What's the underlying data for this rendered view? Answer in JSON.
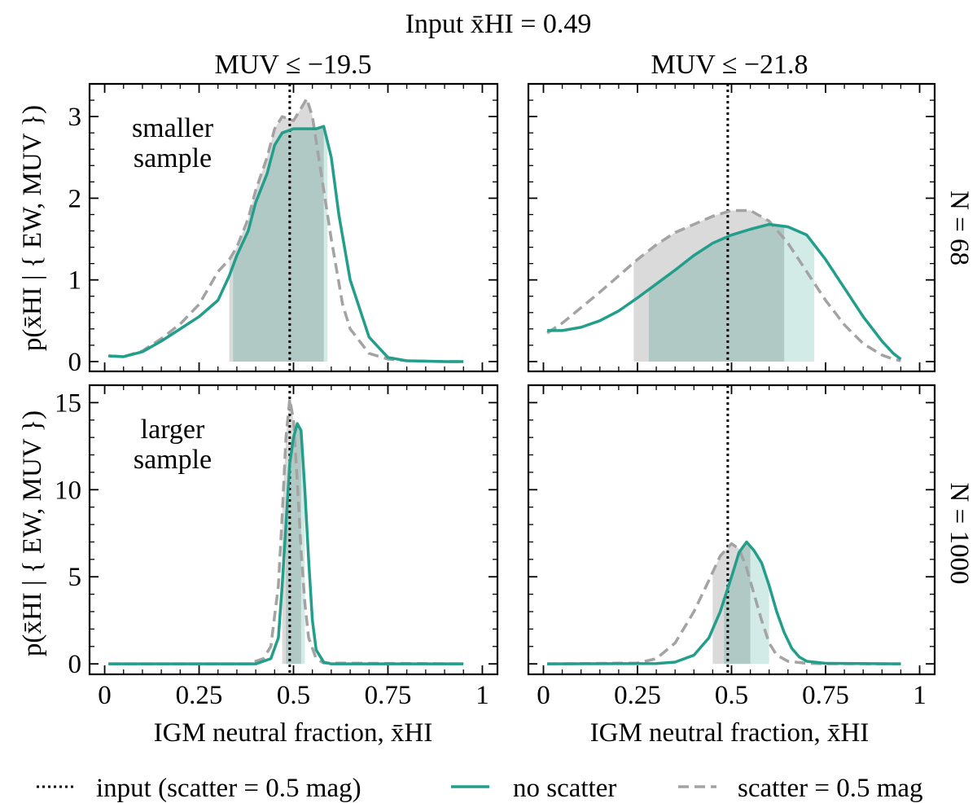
{
  "figure": {
    "suptitle": "Input x̄HI = 0.49",
    "colors": {
      "no_scatter": "#229e8b",
      "no_scatter_fill": "#d2ebe6",
      "scatter": "#a3a3a3",
      "scatter_fill": "#dadada",
      "overlap_fill": "#b1c9c4",
      "input_line": "#000000"
    }
  },
  "legend": {
    "entries": [
      {
        "label": "input (scatter = 0.5 mag)",
        "style": "dotted"
      },
      {
        "label": "no scatter",
        "style": "solid"
      },
      {
        "label": "scatter = 0.5 mag",
        "style": "dashed"
      }
    ]
  },
  "chart_data": [
    {
      "type": "line",
      "panel": "top-left",
      "title": "MUV ≤ −19.5",
      "ylabel": "p(x̄HI | { EW, MUV })",
      "xlabel": "",
      "annotation": [
        "smaller",
        "sample"
      ],
      "xlim": [
        -0.04,
        1.04
      ],
      "ylim": [
        -0.12,
        3.4
      ],
      "xticks": [
        0,
        0.25,
        0.5,
        0.75,
        1
      ],
      "xtick_labels": [
        "0",
        "0.25",
        "0.5",
        "0.75",
        "1"
      ],
      "yticks": [
        0,
        1,
        2,
        3
      ],
      "ytick_labels": [
        "0",
        "1",
        "2",
        "3"
      ],
      "input_x": 0.49,
      "series": [
        {
          "name": "no scatter",
          "x": [
            0.01,
            0.05,
            0.1,
            0.15,
            0.2,
            0.25,
            0.3,
            0.33,
            0.35,
            0.38,
            0.4,
            0.43,
            0.45,
            0.47,
            0.5,
            0.53,
            0.56,
            0.58,
            0.6,
            0.62,
            0.65,
            0.7,
            0.75,
            0.8,
            0.9,
            0.95
          ],
          "y": [
            0.07,
            0.06,
            0.12,
            0.25,
            0.4,
            0.55,
            0.75,
            1.05,
            1.3,
            1.6,
            1.95,
            2.3,
            2.65,
            2.8,
            2.85,
            2.85,
            2.85,
            2.88,
            2.5,
            1.8,
            1.0,
            0.3,
            0.05,
            0.01,
            0.0,
            0.0
          ],
          "band": [
            0.34,
            0.59
          ]
        },
        {
          "name": "scatter = 0.5 mag",
          "x": [
            0.01,
            0.05,
            0.1,
            0.15,
            0.2,
            0.25,
            0.3,
            0.33,
            0.35,
            0.38,
            0.4,
            0.43,
            0.45,
            0.47,
            0.5,
            0.52,
            0.535,
            0.55,
            0.57,
            0.6,
            0.63,
            0.65,
            0.7,
            0.75,
            0.8,
            0.9,
            0.95
          ],
          "y": [
            0.07,
            0.06,
            0.13,
            0.28,
            0.46,
            0.7,
            1.1,
            1.25,
            1.4,
            1.75,
            2.1,
            2.5,
            2.85,
            3.0,
            2.95,
            3.1,
            3.22,
            3.0,
            2.4,
            1.5,
            0.7,
            0.4,
            0.1,
            0.03,
            0.01,
            0.0,
            0.0
          ],
          "band": [
            0.33,
            0.58
          ]
        }
      ]
    },
    {
      "type": "line",
      "panel": "top-right",
      "title": "MUV ≤ −21.8",
      "ylabel": "",
      "xlabel": "",
      "row_label": "N = 68",
      "xlim": [
        -0.04,
        1.04
      ],
      "ylim": [
        -0.12,
        3.4
      ],
      "xticks": [
        0,
        0.25,
        0.5,
        0.75,
        1
      ],
      "xtick_labels": [
        "0",
        "0.25",
        "0.5",
        "0.75",
        "1"
      ],
      "yticks": [
        0,
        1,
        2,
        3
      ],
      "ytick_labels": [
        "",
        "",
        "",
        ""
      ],
      "input_x": 0.49,
      "series": [
        {
          "name": "no scatter",
          "x": [
            0.01,
            0.05,
            0.1,
            0.15,
            0.2,
            0.25,
            0.3,
            0.35,
            0.4,
            0.45,
            0.5,
            0.55,
            0.6,
            0.65,
            0.7,
            0.75,
            0.8,
            0.85,
            0.9,
            0.93,
            0.95
          ],
          "y": [
            0.38,
            0.38,
            0.42,
            0.5,
            0.62,
            0.78,
            0.95,
            1.12,
            1.3,
            1.45,
            1.55,
            1.62,
            1.68,
            1.65,
            1.55,
            1.25,
            0.9,
            0.55,
            0.25,
            0.1,
            0.03
          ],
          "band": [
            0.28,
            0.72
          ]
        },
        {
          "name": "scatter = 0.5 mag",
          "x": [
            0.01,
            0.05,
            0.1,
            0.15,
            0.2,
            0.25,
            0.3,
            0.35,
            0.4,
            0.45,
            0.5,
            0.55,
            0.6,
            0.65,
            0.7,
            0.75,
            0.8,
            0.85,
            0.9,
            0.93,
            0.95
          ],
          "y": [
            0.35,
            0.47,
            0.66,
            0.85,
            1.05,
            1.25,
            1.43,
            1.58,
            1.68,
            1.78,
            1.85,
            1.85,
            1.72,
            1.45,
            1.1,
            0.75,
            0.45,
            0.22,
            0.08,
            0.03,
            0.01
          ],
          "band": [
            0.24,
            0.64
          ]
        }
      ]
    },
    {
      "type": "line",
      "panel": "bottom-left",
      "title": "",
      "ylabel": "p(x̄HI | { EW, MUV })",
      "xlabel": "IGM neutral fraction, x̄HI",
      "annotation": [
        "larger",
        "sample"
      ],
      "xlim": [
        -0.04,
        1.04
      ],
      "ylim": [
        -0.6,
        16.0
      ],
      "xticks": [
        0,
        0.25,
        0.5,
        0.75,
        1
      ],
      "xtick_labels": [
        "0",
        "0.25",
        "0.5",
        "0.75",
        "1"
      ],
      "yticks": [
        0,
        5,
        10,
        15
      ],
      "ytick_labels": [
        "0",
        "5",
        "10",
        "15"
      ],
      "input_x": 0.49,
      "series": [
        {
          "name": "no scatter",
          "x": [
            0.01,
            0.4,
            0.44,
            0.46,
            0.47,
            0.48,
            0.49,
            0.5,
            0.51,
            0.52,
            0.53,
            0.54,
            0.55,
            0.56,
            0.58,
            0.6,
            0.95
          ],
          "y": [
            0.0,
            0.0,
            0.3,
            1.5,
            4.5,
            8.0,
            11.5,
            13.0,
            13.8,
            13.4,
            10.0,
            6.0,
            2.5,
            0.8,
            0.1,
            0.0,
            0.0
          ],
          "band": [
            0.48,
            0.53
          ]
        },
        {
          "name": "scatter = 0.5 mag",
          "x": [
            0.01,
            0.38,
            0.42,
            0.44,
            0.46,
            0.47,
            0.48,
            0.49,
            0.5,
            0.51,
            0.52,
            0.53,
            0.54,
            0.56,
            0.58,
            0.95
          ],
          "y": [
            0.0,
            0.0,
            0.3,
            1.0,
            4.5,
            8.5,
            13.0,
            15.2,
            14.0,
            10.5,
            6.5,
            3.5,
            1.5,
            0.3,
            0.05,
            0.0
          ],
          "band": [
            0.47,
            0.52
          ]
        }
      ]
    },
    {
      "type": "line",
      "panel": "bottom-right",
      "title": "",
      "ylabel": "",
      "xlabel": "IGM neutral fraction, x̄HI",
      "row_label": "N = 1000",
      "xlim": [
        -0.04,
        1.04
      ],
      "ylim": [
        -0.6,
        16.0
      ],
      "xticks": [
        0,
        0.25,
        0.5,
        0.75,
        1
      ],
      "xtick_labels": [
        "0",
        "0.25",
        "0.5",
        "0.75",
        "1"
      ],
      "yticks": [
        0,
        5,
        10,
        15
      ],
      "ytick_labels": [
        "",
        "",
        "",
        ""
      ],
      "input_x": 0.49,
      "series": [
        {
          "name": "no scatter",
          "x": [
            0.01,
            0.3,
            0.35,
            0.4,
            0.44,
            0.47,
            0.5,
            0.52,
            0.54,
            0.56,
            0.58,
            0.6,
            0.62,
            0.64,
            0.66,
            0.68,
            0.7,
            0.75,
            0.95
          ],
          "y": [
            0.0,
            0.02,
            0.1,
            0.5,
            1.5,
            3.0,
            5.0,
            6.4,
            7.0,
            6.5,
            5.8,
            4.5,
            3.0,
            1.8,
            0.9,
            0.4,
            0.15,
            0.03,
            0.0
          ],
          "band": [
            0.48,
            0.6
          ]
        },
        {
          "name": "scatter = 0.5 mag",
          "x": [
            0.01,
            0.25,
            0.3,
            0.35,
            0.4,
            0.44,
            0.47,
            0.5,
            0.52,
            0.54,
            0.56,
            0.58,
            0.6,
            0.62,
            0.65,
            0.7,
            0.75,
            0.95
          ],
          "y": [
            0.0,
            0.05,
            0.3,
            1.2,
            3.0,
            4.8,
            6.2,
            6.9,
            6.6,
            5.5,
            4.0,
            2.5,
            1.2,
            0.5,
            0.15,
            0.03,
            0.01,
            0.0
          ],
          "band": [
            0.45,
            0.55
          ]
        }
      ]
    }
  ]
}
